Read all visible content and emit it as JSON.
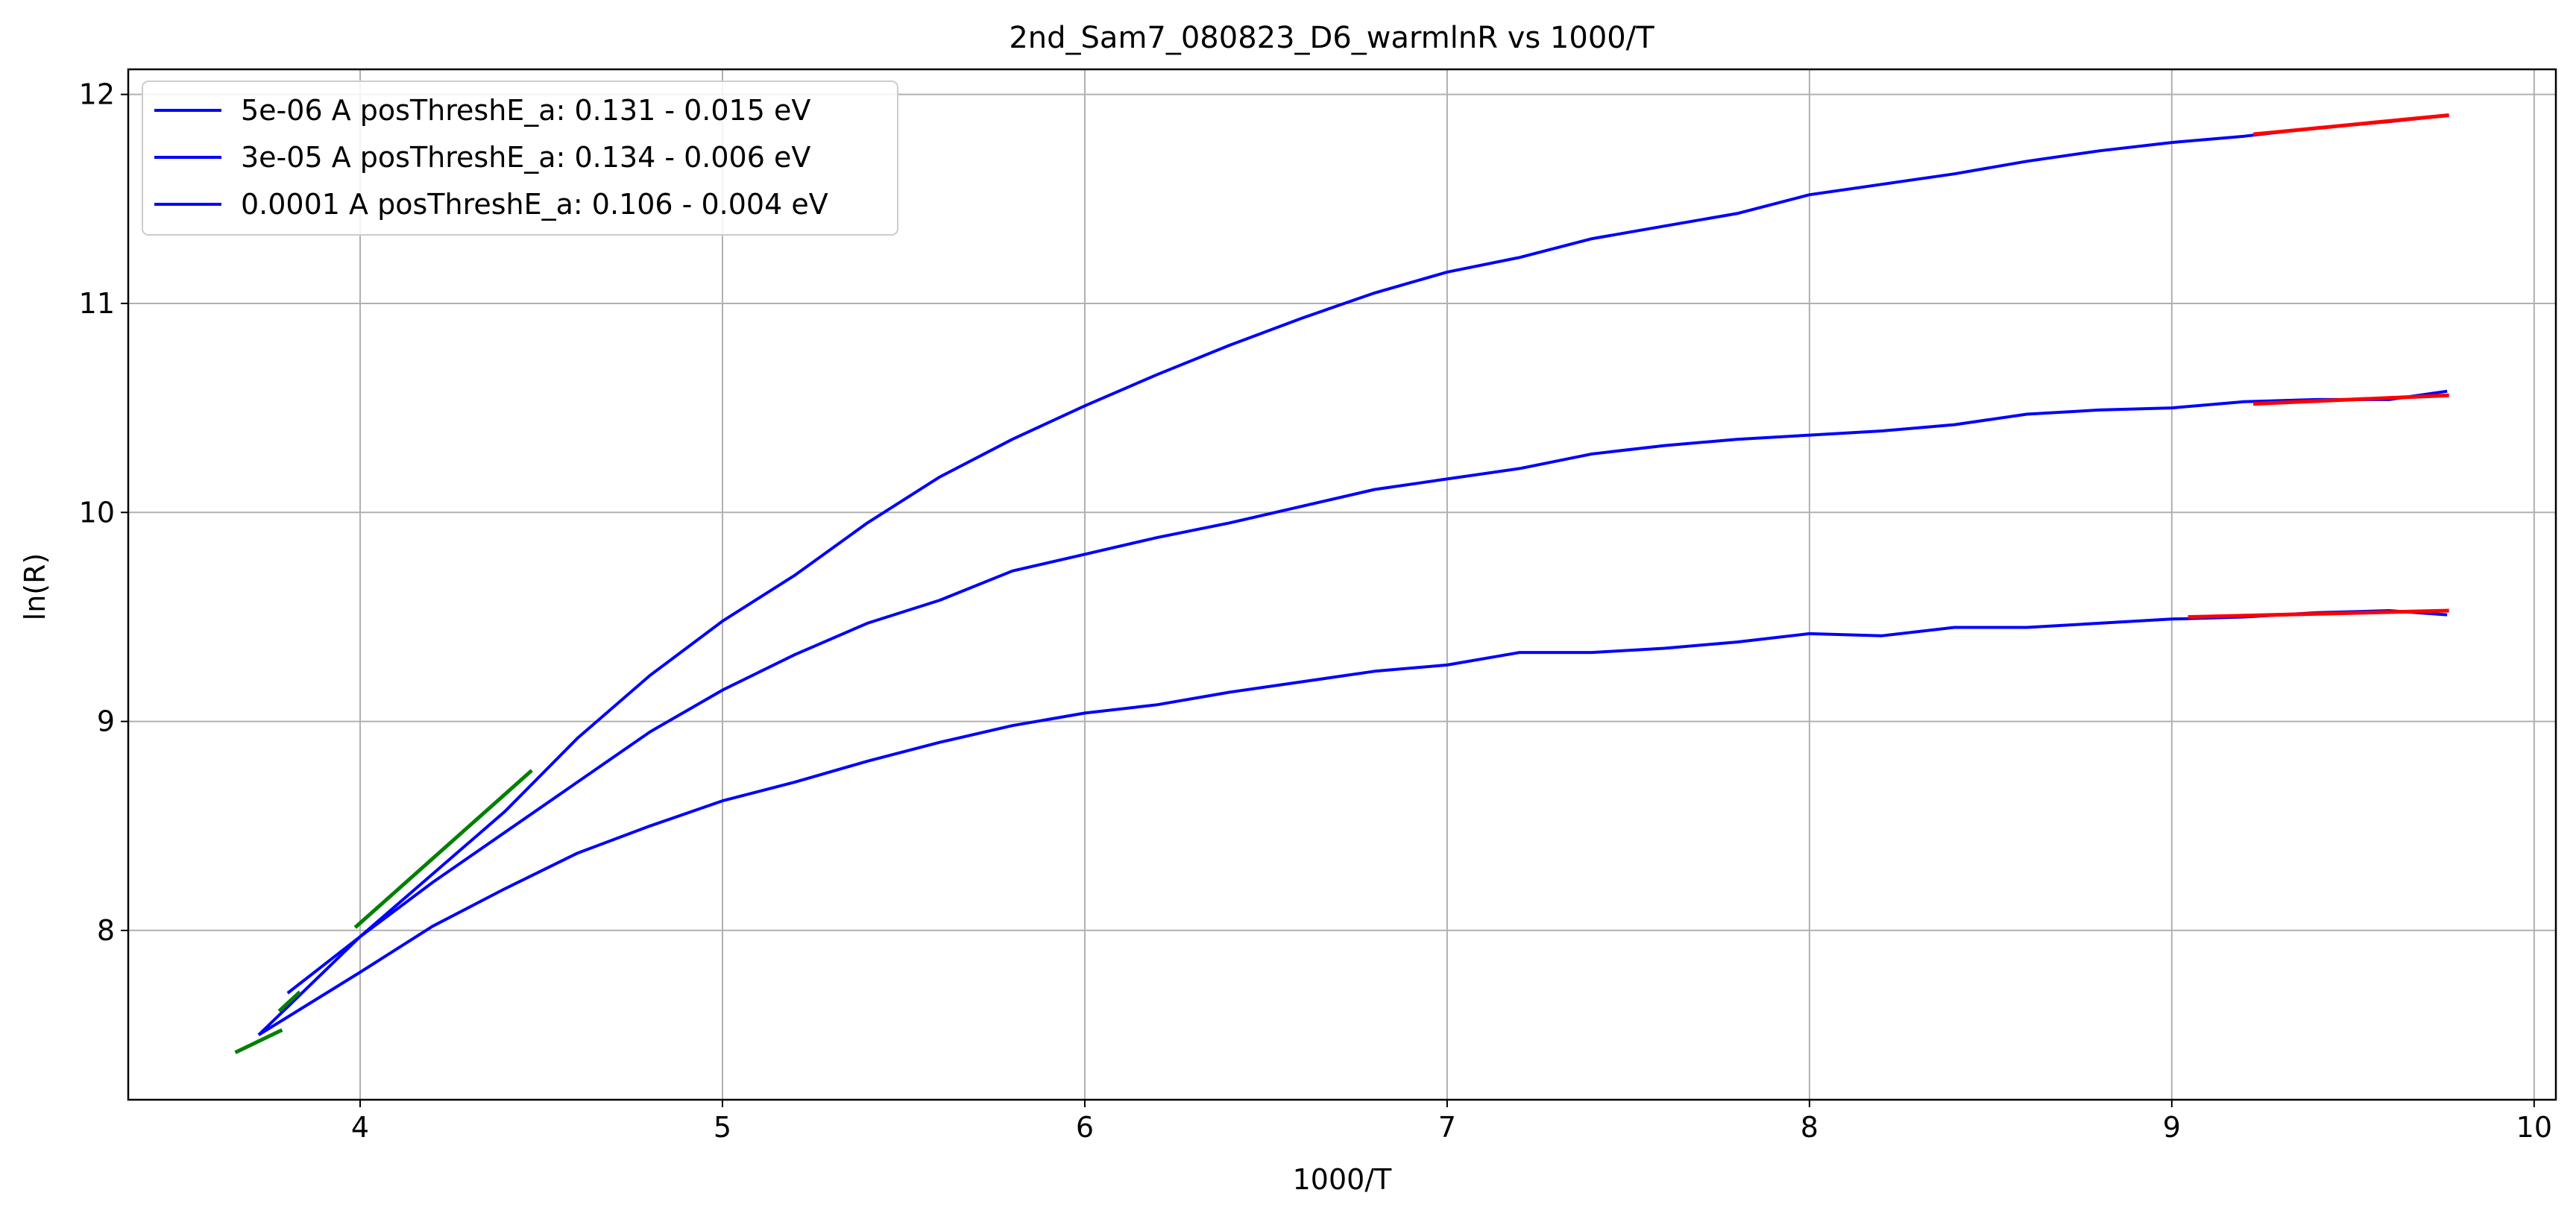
{
  "chart_data": {
    "type": "line",
    "title": "2nd_Sam7_080823_D6_warmlnR vs 1000/T",
    "xlabel": "1000/T",
    "ylabel": "ln(R)",
    "xlim": [
      3.36,
      10.06
    ],
    "ylim": [
      7.19,
      12.12
    ],
    "xticks": [
      4,
      5,
      6,
      7,
      8,
      9,
      10
    ],
    "yticks": [
      8,
      9,
      10,
      11,
      12
    ],
    "grid": true,
    "legend_position": "upper-left",
    "series": [
      {
        "name": "5e-06 A posThreshE_a: 0.131 - 0.015 eV",
        "color": "#0000ff",
        "points": [
          [
            3.8,
            7.7
          ],
          [
            4.0,
            7.97
          ],
          [
            4.2,
            8.27
          ],
          [
            4.4,
            8.57
          ],
          [
            4.6,
            8.92
          ],
          [
            4.8,
            9.22
          ],
          [
            5.0,
            9.48
          ],
          [
            5.2,
            9.7
          ],
          [
            5.4,
            9.95
          ],
          [
            5.6,
            10.17
          ],
          [
            5.8,
            10.35
          ],
          [
            6.0,
            10.51
          ],
          [
            6.2,
            10.66
          ],
          [
            6.4,
            10.8
          ],
          [
            6.6,
            10.93
          ],
          [
            6.8,
            11.05
          ],
          [
            7.0,
            11.15
          ],
          [
            7.2,
            11.22
          ],
          [
            7.4,
            11.31
          ],
          [
            7.6,
            11.37
          ],
          [
            7.8,
            11.43
          ],
          [
            8.0,
            11.52
          ],
          [
            8.2,
            11.57
          ],
          [
            8.4,
            11.62
          ],
          [
            8.6,
            11.68
          ],
          [
            8.8,
            11.73
          ],
          [
            9.0,
            11.77
          ],
          [
            9.2,
            11.8
          ],
          [
            9.4,
            11.84
          ],
          [
            9.6,
            11.87
          ],
          [
            9.76,
            11.9
          ]
        ]
      },
      {
        "name": "3e-05 A posThreshE_a: 0.134 - 0.006 eV",
        "color": "#0000ff",
        "points": [
          [
            3.72,
            7.5
          ],
          [
            4.0,
            7.97
          ],
          [
            4.2,
            8.23
          ],
          [
            4.4,
            8.47
          ],
          [
            4.6,
            8.71
          ],
          [
            4.8,
            8.95
          ],
          [
            5.0,
            9.15
          ],
          [
            5.2,
            9.32
          ],
          [
            5.4,
            9.47
          ],
          [
            5.6,
            9.58
          ],
          [
            5.8,
            9.72
          ],
          [
            6.0,
            9.8
          ],
          [
            6.2,
            9.88
          ],
          [
            6.4,
            9.95
          ],
          [
            6.6,
            10.03
          ],
          [
            6.8,
            10.11
          ],
          [
            7.0,
            10.16
          ],
          [
            7.2,
            10.21
          ],
          [
            7.4,
            10.28
          ],
          [
            7.6,
            10.32
          ],
          [
            7.8,
            10.35
          ],
          [
            8.0,
            10.37
          ],
          [
            8.2,
            10.39
          ],
          [
            8.4,
            10.42
          ],
          [
            8.6,
            10.47
          ],
          [
            8.8,
            10.49
          ],
          [
            9.0,
            10.5
          ],
          [
            9.2,
            10.53
          ],
          [
            9.4,
            10.54
          ],
          [
            9.6,
            10.54
          ],
          [
            9.76,
            10.58
          ]
        ]
      },
      {
        "name": "0.0001 A posThreshE_a: 0.106 - 0.004 eV",
        "color": "#0000ff",
        "points": [
          [
            3.72,
            7.5
          ],
          [
            4.0,
            7.8
          ],
          [
            4.2,
            8.02
          ],
          [
            4.4,
            8.2
          ],
          [
            4.6,
            8.37
          ],
          [
            4.8,
            8.5
          ],
          [
            5.0,
            8.62
          ],
          [
            5.2,
            8.71
          ],
          [
            5.4,
            8.81
          ],
          [
            5.6,
            8.9
          ],
          [
            5.8,
            8.98
          ],
          [
            6.0,
            9.04
          ],
          [
            6.2,
            9.08
          ],
          [
            6.4,
            9.14
          ],
          [
            6.6,
            9.19
          ],
          [
            6.8,
            9.24
          ],
          [
            7.0,
            9.27
          ],
          [
            7.2,
            9.33
          ],
          [
            7.4,
            9.33
          ],
          [
            7.6,
            9.35
          ],
          [
            7.8,
            9.38
          ],
          [
            8.0,
            9.42
          ],
          [
            8.2,
            9.41
          ],
          [
            8.4,
            9.45
          ],
          [
            8.6,
            9.45
          ],
          [
            8.8,
            9.47
          ],
          [
            9.0,
            9.49
          ],
          [
            9.2,
            9.5
          ],
          [
            9.4,
            9.52
          ],
          [
            9.6,
            9.53
          ],
          [
            9.76,
            9.51
          ]
        ]
      }
    ],
    "fit_lines": [
      {
        "color": "#ff0000",
        "points": [
          [
            9.23,
            11.81
          ],
          [
            9.76,
            11.9
          ]
        ]
      },
      {
        "color": "#ff0000",
        "points": [
          [
            9.23,
            10.52
          ],
          [
            9.76,
            10.56
          ]
        ]
      },
      {
        "color": "#ff0000",
        "points": [
          [
            9.05,
            9.5
          ],
          [
            9.76,
            9.53
          ]
        ]
      },
      {
        "color": "#008000",
        "points": [
          [
            3.78,
            7.62
          ],
          [
            3.83,
            7.7
          ]
        ]
      },
      {
        "color": "#008000",
        "points": [
          [
            3.99,
            8.02
          ],
          [
            4.47,
            8.76
          ]
        ]
      },
      {
        "color": "#008000",
        "points": [
          [
            3.66,
            7.42
          ],
          [
            3.78,
            7.52
          ]
        ]
      }
    ]
  }
}
